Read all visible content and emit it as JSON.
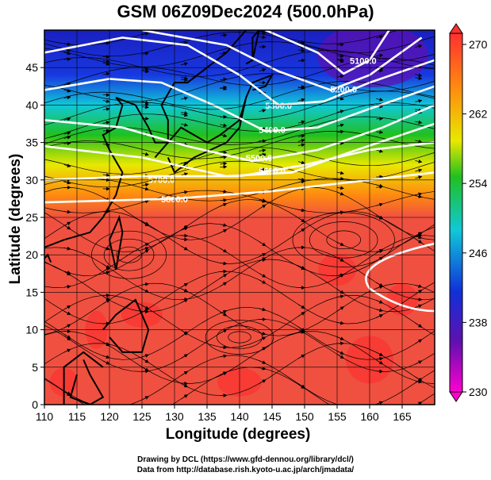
{
  "title": "GSM 06Z09Dec2024 (500.0hPa)",
  "xlabel": "Longitude (degrees)",
  "ylabel": "Latitude  (degrees)",
  "credits": [
    "Drawing by DCL (https://www.gfd-dennou.org/library/dcl/)",
    "Data from http://database.rish.kyoto-u.ac.jp/arch/jmadata/"
  ],
  "map": {
    "lon_range": [
      110,
      170
    ],
    "lat_range": [
      0,
      50
    ],
    "lon_ticks": [
      "110",
      "115",
      "120",
      "125",
      "130",
      "135",
      "140",
      "145",
      "150",
      "155",
      "160",
      "165"
    ],
    "lat_ticks": [
      "0",
      "5",
      "10",
      "15",
      "20",
      "25",
      "30",
      "35",
      "40",
      "45"
    ],
    "contour_labels": [
      "5100.0",
      "5200.0",
      "5300.0",
      "5400.0",
      "5500.0",
      "5600.0",
      "5700.0",
      "5800.0"
    ],
    "colorbar_ticks": [
      "270",
      "262",
      "254",
      "246",
      "238",
      "230"
    ],
    "colorbar_range": [
      230,
      270
    ],
    "colors": {
      "tropical": "#f05040",
      "orange": "#ff8a10",
      "yellow": "#e8e800",
      "green": "#20c020",
      "cyan": "#10c8d8",
      "blue": "#1030d8",
      "violet": "#6010b0",
      "magenta": "#ff00d0"
    }
  }
}
